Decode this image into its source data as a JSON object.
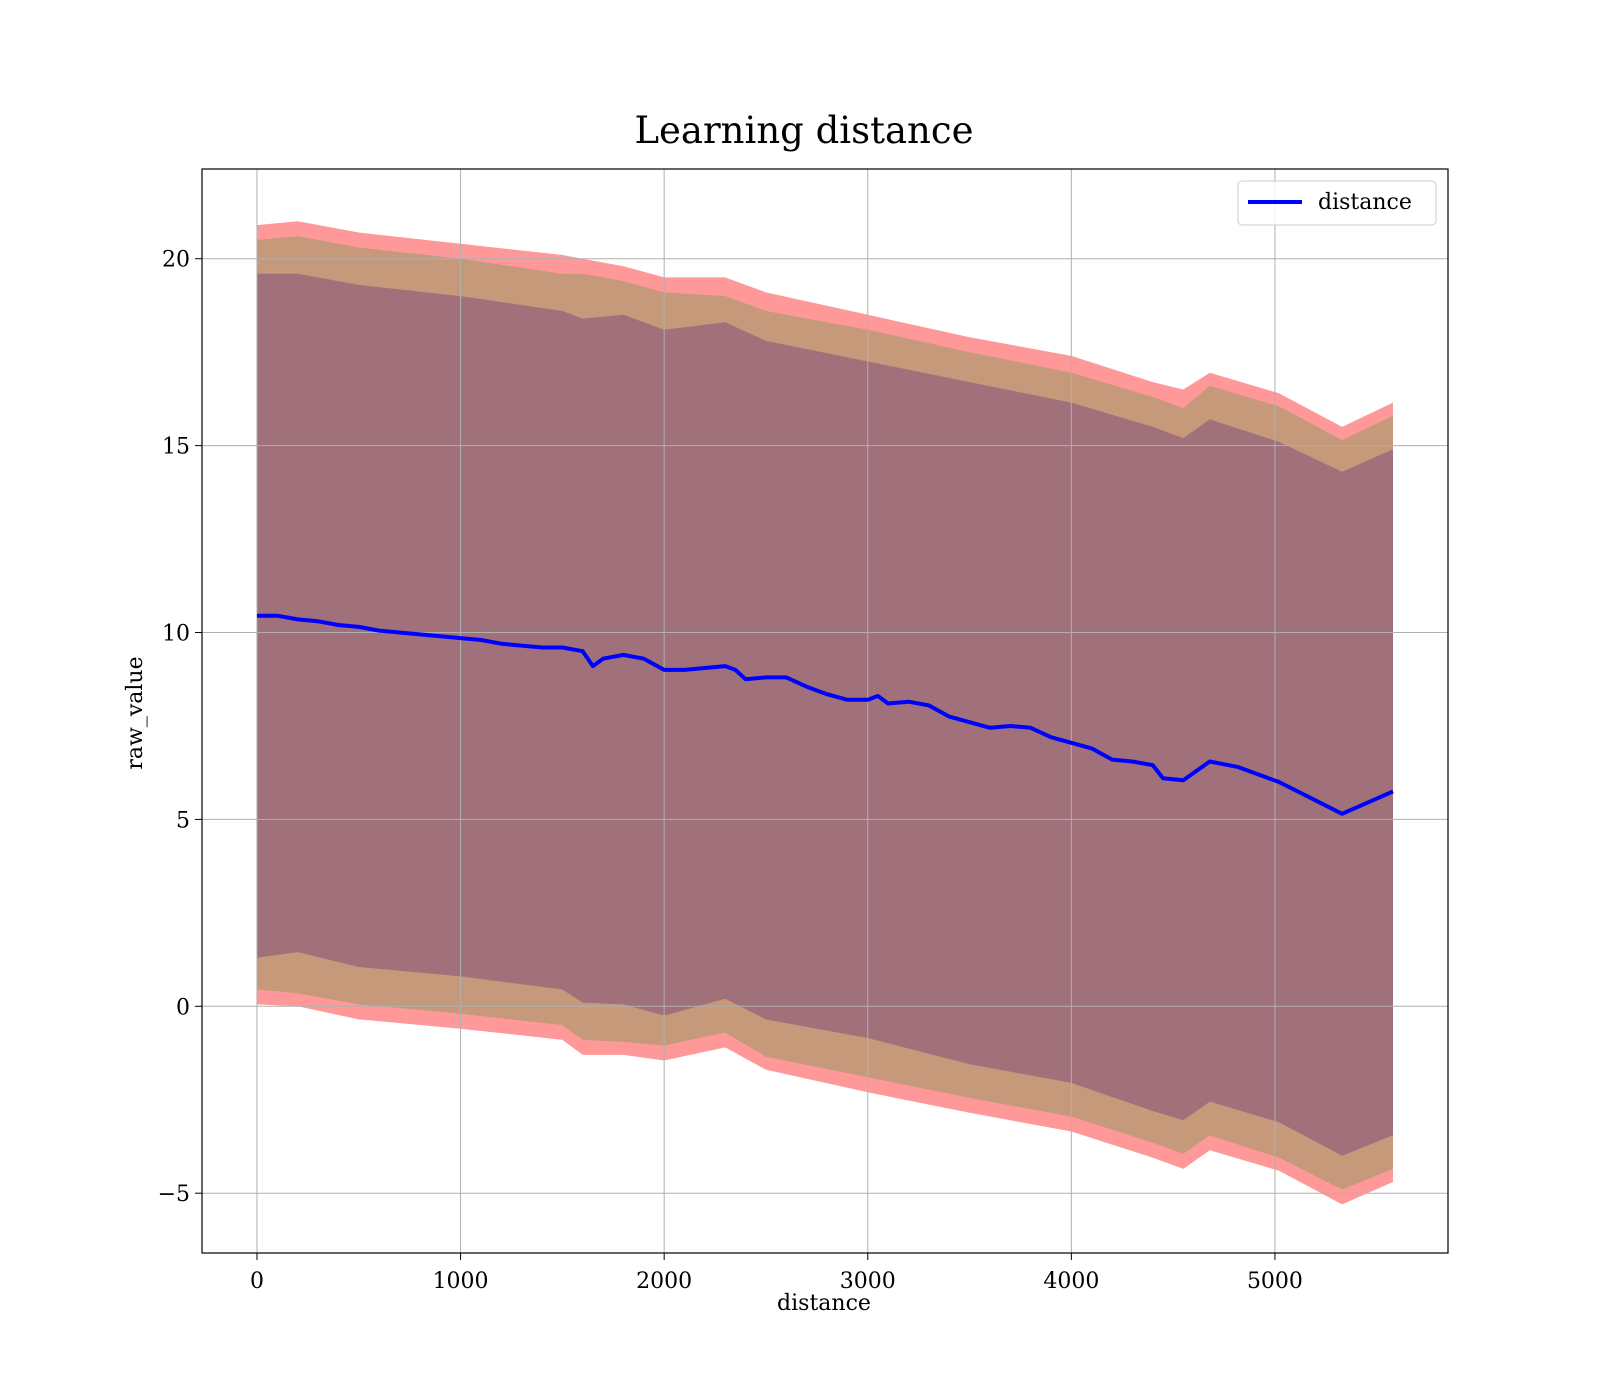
{
  "chart_data": {
    "type": "line",
    "title": "Learning distance",
    "xlabel": "distance",
    "ylabel": "raw_value",
    "xlim": [
      -270,
      5850
    ],
    "ylim": [
      -6.6,
      22.4
    ],
    "xticks": [
      0,
      1000,
      2000,
      3000,
      4000,
      5000
    ],
    "xtick_labels": [
      "0",
      "1000",
      "2000",
      "3000",
      "4000",
      "5000"
    ],
    "yticks": [
      -5,
      0,
      5,
      10,
      15,
      20
    ],
    "ytick_labels": [
      "−5",
      "0",
      "5",
      "10",
      "15",
      "20"
    ],
    "grid": true,
    "legend": {
      "position": "top-right",
      "entries": [
        "distance"
      ]
    },
    "colors": {
      "line": "#0000ff",
      "band_outer": "#ff9999",
      "band_middle": "#c5997a",
      "band_inner": "#a0717a"
    },
    "series": [
      {
        "name": "distance",
        "x": [
          0,
          100,
          200,
          300,
          400,
          500,
          600,
          700,
          800,
          900,
          1000,
          1100,
          1200,
          1300,
          1400,
          1500,
          1600,
          1650,
          1700,
          1800,
          1900,
          2000,
          2100,
          2200,
          2300,
          2350,
          2400,
          2500,
          2600,
          2700,
          2800,
          2900,
          3000,
          3050,
          3100,
          3200,
          3300,
          3400,
          3500,
          3600,
          3700,
          3800,
          3900,
          4000,
          4100,
          4200,
          4300,
          4400,
          4450,
          4550,
          4680,
          4820,
          5020,
          5330,
          5580
        ],
        "values": [
          10.45,
          10.45,
          10.35,
          10.3,
          10.2,
          10.15,
          10.05,
          10.0,
          9.95,
          9.9,
          9.85,
          9.8,
          9.7,
          9.65,
          9.6,
          9.6,
          9.5,
          9.1,
          9.3,
          9.4,
          9.3,
          9.0,
          9.0,
          9.05,
          9.1,
          9.0,
          8.75,
          8.8,
          8.8,
          8.55,
          8.35,
          8.2,
          8.2,
          8.3,
          8.1,
          8.15,
          8.05,
          7.75,
          7.6,
          7.45,
          7.5,
          7.45,
          7.2,
          7.05,
          6.9,
          6.6,
          6.55,
          6.45,
          6.1,
          6.05,
          6.55,
          6.4,
          6.0,
          5.15,
          5.75
        ]
      }
    ],
    "bands": [
      {
        "x": [
          0,
          200,
          500,
          1000,
          1500,
          1600,
          1800,
          2000,
          2300,
          2500,
          3000,
          3500,
          4000,
          4400,
          4550,
          4680,
          5020,
          5330,
          5580
        ],
        "upper": [
          20.9,
          21.0,
          20.7,
          20.4,
          20.1,
          20.0,
          19.8,
          19.5,
          19.5,
          19.1,
          18.5,
          17.9,
          17.4,
          16.7,
          16.5,
          16.95,
          16.4,
          15.5,
          16.15
        ],
        "lower": [
          0.05,
          0.0,
          -0.35,
          -0.6,
          -0.9,
          -1.3,
          -1.3,
          -1.45,
          -1.1,
          -1.7,
          -2.3,
          -2.85,
          -3.35,
          -4.05,
          -4.35,
          -3.85,
          -4.4,
          -5.3,
          -4.7
        ]
      },
      {
        "x": [
          0,
          200,
          500,
          1000,
          1500,
          1600,
          1800,
          2000,
          2300,
          2500,
          3000,
          3500,
          4000,
          4400,
          4550,
          4680,
          5020,
          5330,
          5580
        ],
        "upper": [
          20.5,
          20.6,
          20.3,
          20.0,
          19.6,
          19.6,
          19.4,
          19.1,
          19.0,
          18.6,
          18.1,
          17.5,
          16.95,
          16.3,
          16.0,
          16.6,
          16.05,
          15.15,
          15.8
        ],
        "lower": [
          0.45,
          0.35,
          0.05,
          -0.2,
          -0.5,
          -0.9,
          -0.95,
          -1.05,
          -0.7,
          -1.35,
          -1.9,
          -2.45,
          -2.95,
          -3.65,
          -3.95,
          -3.45,
          -4.05,
          -4.9,
          -4.35
        ]
      },
      {
        "x": [
          0,
          200,
          500,
          1000,
          1500,
          1600,
          1800,
          2000,
          2300,
          2500,
          3000,
          3500,
          4000,
          4400,
          4550,
          4680,
          5020,
          5330,
          5580
        ],
        "upper": [
          19.6,
          19.6,
          19.3,
          19.0,
          18.6,
          18.4,
          18.5,
          18.1,
          18.3,
          17.8,
          17.25,
          16.7,
          16.15,
          15.5,
          15.2,
          15.7,
          15.1,
          14.3,
          14.9
        ],
        "lower": [
          1.3,
          1.45,
          1.05,
          0.8,
          0.45,
          0.1,
          0.05,
          -0.25,
          0.2,
          -0.35,
          -0.85,
          -1.55,
          -2.05,
          -2.8,
          -3.05,
          -2.55,
          -3.1,
          -4.0,
          -3.45
        ]
      }
    ]
  }
}
